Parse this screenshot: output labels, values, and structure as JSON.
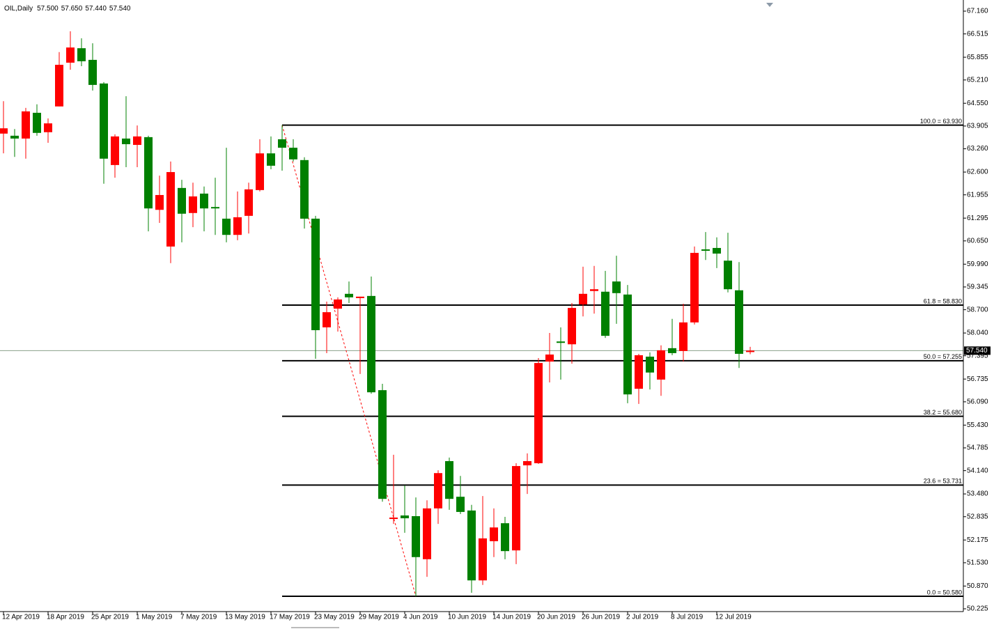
{
  "chart_data": {
    "type": "candlestick",
    "title": "OIL,Daily",
    "header_values": [
      "57.500",
      "57.650",
      "57.440",
      "57.540"
    ],
    "categories": [
      "12 Apr 2019",
      null,
      null,
      null,
      "18 Apr 2019",
      null,
      null,
      null,
      "25 Apr 2019",
      null,
      null,
      null,
      "1 May 2019",
      null,
      null,
      null,
      "7 May 2019",
      null,
      null,
      null,
      "13 May 2019",
      null,
      null,
      null,
      "17 May 2019",
      null,
      null,
      null,
      "23 May 2019",
      null,
      null,
      null,
      "29 May 2019",
      null,
      null,
      null,
      "4 Jun 2019",
      null,
      null,
      null,
      "10 Jun 2019",
      null,
      null,
      null,
      "14 Jun 2019",
      null,
      null,
      null,
      "20 Jun 2019",
      null,
      null,
      null,
      "26 Jun 2019",
      null,
      null,
      null,
      "2 Jul 2019",
      null,
      null,
      null,
      "8 Jul 2019",
      null,
      null,
      null,
      "12 Jul 2019",
      null,
      null,
      null
    ],
    "series": [
      {
        "open": [
          63.69,
          63.63,
          63.55,
          64.28,
          63.73,
          64.46,
          65.7,
          66.11,
          65.78,
          65.11,
          62.8,
          63.55,
          63.37,
          63.59,
          61.53,
          60.49,
          62.15,
          61.44,
          61.99,
          61.61,
          61.28,
          60.82,
          61.36,
          62.09,
          63.13,
          63.53,
          63.29,
          62.94,
          61.28,
          58.2,
          58.73,
          59.15,
          59.03,
          59.09,
          56.42,
          52.77,
          52.87,
          52.85,
          51.63,
          53.07,
          54.41,
          53.4,
          53.01,
          51.03,
          52.14,
          52.65,
          51.88,
          54.29,
          54.35,
          57.23,
          57.8,
          57.72,
          58.85,
          59.23,
          59.21,
          59.5,
          59.13,
          56.46,
          57.37,
          56.72,
          57.61,
          57.53,
          58.34,
          60.41,
          60.45,
          60.09,
          59.25,
          57.5
        ],
        "high": [
          64.61,
          63.82,
          64.42,
          64.52,
          64.12,
          66.0,
          66.59,
          66.39,
          66.25,
          65.15,
          63.67,
          64.75,
          63.92,
          63.63,
          62.5,
          62.9,
          62.38,
          62.3,
          62.19,
          62.44,
          63.29,
          62.05,
          62.3,
          63.53,
          63.61,
          63.93,
          63.53,
          63.02,
          61.36,
          58.93,
          59.05,
          59.5,
          59.07,
          59.64,
          56.6,
          54.59,
          53.72,
          53.38,
          53.3,
          54.15,
          54.51,
          53.99,
          53.17,
          53.42,
          53.07,
          52.83,
          54.35,
          54.63,
          57.33,
          58.04,
          58.2,
          58.89,
          59.92,
          59.94,
          59.8,
          60.23,
          59.4,
          57.45,
          57.49,
          57.69,
          58.44,
          58.87,
          60.49,
          60.9,
          60.75,
          60.88,
          60.05,
          57.65
        ],
        "low": [
          63.13,
          63.03,
          62.98,
          63.63,
          63.43,
          64.46,
          65.5,
          65.6,
          64.91,
          62.27,
          62.44,
          62.74,
          62.74,
          60.92,
          61.16,
          60.02,
          60.61,
          61.04,
          60.92,
          60.82,
          60.61,
          60.67,
          60.86,
          62.05,
          62.68,
          62.64,
          62.9,
          61.0,
          57.31,
          57.47,
          58.08,
          58.89,
          56.88,
          56.32,
          53.26,
          52.63,
          52.38,
          50.58,
          51.13,
          52.63,
          53.03,
          52.91,
          50.68,
          50.9,
          51.69,
          51.63,
          51.49,
          53.48,
          54.33,
          56.64,
          56.72,
          57.17,
          58.51,
          58.59,
          57.9,
          58.3,
          56.05,
          56.03,
          56.44,
          56.26,
          57.41,
          57.23,
          58.28,
          60.11,
          59.88,
          59.19,
          57.05,
          57.44
        ],
        "close": [
          63.84,
          63.55,
          64.32,
          63.71,
          63.98,
          65.64,
          66.13,
          65.74,
          65.07,
          62.98,
          63.61,
          63.39,
          63.61,
          61.57,
          61.95,
          62.6,
          61.42,
          61.91,
          61.57,
          61.57,
          60.82,
          61.32,
          62.11,
          63.13,
          62.78,
          63.29,
          62.96,
          61.28,
          58.12,
          58.63,
          58.99,
          59.05,
          59.07,
          56.36,
          53.34,
          52.81,
          52.79,
          51.69,
          53.07,
          54.07,
          53.34,
          52.97,
          51.03,
          52.22,
          52.53,
          51.86,
          54.27,
          54.41,
          57.19,
          57.43,
          57.76,
          58.75,
          59.15,
          59.28,
          57.96,
          59.17,
          56.3,
          57.41,
          56.92,
          57.55,
          57.47,
          58.34,
          60.31,
          60.37,
          60.29,
          59.28,
          57.45,
          57.54
        ]
      }
    ],
    "up_color": "#ff0000",
    "down_color": "#008000",
    "ylim": [
      50.146,
      67.476
    ],
    "yticks": [
      {
        "value": 67.16,
        "label": "67.160"
      },
      {
        "value": 66.515,
        "label": "66.515"
      },
      {
        "value": 65.855,
        "label": "65.855"
      },
      {
        "value": 65.21,
        "label": "65.210"
      },
      {
        "value": 64.55,
        "label": "64.550"
      },
      {
        "value": 63.905,
        "label": "63.905"
      },
      {
        "value": 63.26,
        "label": "63.260"
      },
      {
        "value": 62.6,
        "label": "62.600"
      },
      {
        "value": 61.955,
        "label": "61.955"
      },
      {
        "value": 61.295,
        "label": "61.295"
      },
      {
        "value": 60.65,
        "label": "60.650"
      },
      {
        "value": 59.99,
        "label": "59.990"
      },
      {
        "value": 59.345,
        "label": "59.345"
      },
      {
        "value": 58.7,
        "label": "58.700"
      },
      {
        "value": 58.04,
        "label": "58.040"
      },
      {
        "value": 57.395,
        "label": "57.395"
      },
      {
        "value": 56.735,
        "label": "56.735"
      },
      {
        "value": 56.09,
        "label": "56.090"
      },
      {
        "value": 55.43,
        "label": "55.430"
      },
      {
        "value": 54.785,
        "label": "54.785"
      },
      {
        "value": 54.14,
        "label": "54.140"
      },
      {
        "value": 53.48,
        "label": "53.480"
      },
      {
        "value": 52.835,
        "label": "52.835"
      },
      {
        "value": 52.175,
        "label": "52.175"
      },
      {
        "value": 51.53,
        "label": "51.530"
      },
      {
        "value": 50.87,
        "label": "50.870"
      },
      {
        "value": 50.225,
        "label": "50.225"
      }
    ],
    "fib_levels": [
      {
        "value": 63.93,
        "label": "100.0 = 63.930"
      },
      {
        "value": 58.83,
        "label": "61.8 = 58.830"
      },
      {
        "value": 57.255,
        "label": "50.0 = 57.255"
      },
      {
        "value": 55.68,
        "label": "38.2 = 55.680"
      },
      {
        "value": 53.731,
        "label": "23.6 = 53.731"
      },
      {
        "value": 50.58,
        "label": "0.0 = 50.580"
      }
    ],
    "last_price": {
      "value": 57.54,
      "label": "57.540"
    }
  }
}
